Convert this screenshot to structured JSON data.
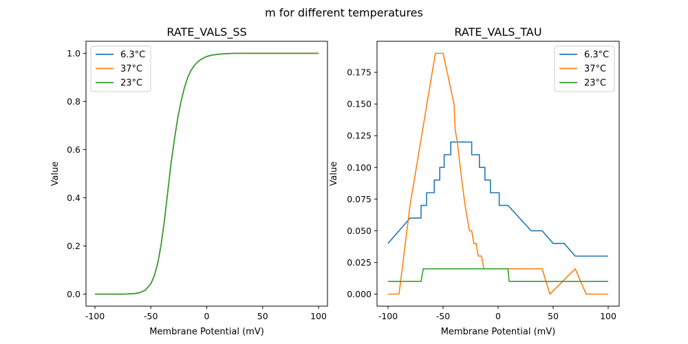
{
  "figure": {
    "suptitle": "m for different temperatures"
  },
  "chart_data": [
    {
      "type": "line",
      "title": "RATE_VALS_SS",
      "xlabel": "Membrane Potential (mV)",
      "ylabel": "Value",
      "xlim": [
        -108,
        108
      ],
      "ylim": [
        -0.05,
        1.05
      ],
      "xticks": [
        "-100",
        "-50",
        "0",
        "50",
        "100"
      ],
      "yticks": [
        "0.0",
        "0.2",
        "0.4",
        "0.6",
        "0.8",
        "1.0"
      ],
      "legend_position": "upper-left",
      "grid": false,
      "x": [
        -100,
        -95,
        -90,
        -85,
        -80,
        -75,
        -70,
        -65,
        -60,
        -55,
        -50,
        -47,
        -44,
        -41,
        -38,
        -35,
        -32,
        -29,
        -26,
        -23,
        -20,
        -17,
        -14,
        -11,
        -8,
        -5,
        -2,
        0,
        5,
        10,
        15,
        20,
        25,
        30,
        40,
        50,
        60,
        70,
        80,
        90,
        100
      ],
      "series": [
        {
          "name": "6.3°C",
          "color": "#1f77b4",
          "values": [
            0.0,
            0.0,
            0.0,
            0.0,
            0.0,
            0.0,
            0.001,
            0.002,
            0.006,
            0.016,
            0.043,
            0.075,
            0.125,
            0.2,
            0.3,
            0.42,
            0.54,
            0.64,
            0.73,
            0.8,
            0.857,
            0.9,
            0.93,
            0.95,
            0.965,
            0.975,
            0.983,
            0.987,
            0.993,
            0.996,
            0.998,
            0.999,
            1.0,
            1.0,
            1.0,
            1.0,
            1.0,
            1.0,
            1.0,
            1.0,
            1.0
          ]
        },
        {
          "name": "37°C",
          "color": "#ff7f0e",
          "values": [
            0.0,
            0.0,
            0.0,
            0.0,
            0.0,
            0.0,
            0.001,
            0.002,
            0.006,
            0.016,
            0.043,
            0.075,
            0.125,
            0.2,
            0.3,
            0.42,
            0.54,
            0.64,
            0.73,
            0.8,
            0.857,
            0.9,
            0.93,
            0.95,
            0.965,
            0.975,
            0.983,
            0.987,
            0.993,
            0.996,
            0.998,
            0.999,
            1.0,
            1.0,
            1.0,
            1.0,
            1.0,
            1.0,
            1.0,
            1.0,
            1.0
          ]
        },
        {
          "name": "23°C",
          "color": "#2ca02c",
          "values": [
            0.0,
            0.0,
            0.0,
            0.0,
            0.0,
            0.0,
            0.001,
            0.002,
            0.006,
            0.016,
            0.043,
            0.075,
            0.125,
            0.2,
            0.3,
            0.42,
            0.54,
            0.64,
            0.73,
            0.8,
            0.857,
            0.9,
            0.93,
            0.95,
            0.965,
            0.975,
            0.983,
            0.987,
            0.993,
            0.996,
            0.998,
            0.999,
            1.0,
            1.0,
            1.0,
            1.0,
            1.0,
            1.0,
            1.0,
            1.0,
            1.0
          ]
        }
      ]
    },
    {
      "type": "line",
      "title": "RATE_VALS_TAU",
      "xlabel": "Membrane Potential (mV)",
      "ylabel": "Value",
      "xlim": [
        -110,
        110
      ],
      "ylim": [
        -0.0095,
        0.1995
      ],
      "xticks": [
        "-100",
        "-50",
        "0",
        "50",
        "100"
      ],
      "yticks": [
        "0.000",
        "0.025",
        "0.050",
        "0.075",
        "0.100",
        "0.125",
        "0.150",
        "0.175"
      ],
      "legend_position": "upper-right",
      "grid": false,
      "series": [
        {
          "name": "6.3°C",
          "color": "#1f77b4",
          "points": [
            [
              -100,
              0.04
            ],
            [
              -80,
              0.06
            ],
            [
              -70,
              0.06
            ],
            [
              -70,
              0.07
            ],
            [
              -65,
              0.07
            ],
            [
              -65,
              0.08
            ],
            [
              -58,
              0.08
            ],
            [
              -58,
              0.09
            ],
            [
              -53,
              0.09
            ],
            [
              -53,
              0.1
            ],
            [
              -49,
              0.1
            ],
            [
              -49,
              0.11
            ],
            [
              -43,
              0.11
            ],
            [
              -43,
              0.12
            ],
            [
              -34,
              0.12
            ],
            [
              -24,
              0.12
            ],
            [
              -24,
              0.11
            ],
            [
              -17,
              0.11
            ],
            [
              -17,
              0.1
            ],
            [
              -12,
              0.1
            ],
            [
              -12,
              0.09
            ],
            [
              -7,
              0.09
            ],
            [
              -7,
              0.08
            ],
            [
              1,
              0.08
            ],
            [
              1,
              0.07
            ],
            [
              9,
              0.07
            ],
            [
              30,
              0.05
            ],
            [
              40,
              0.05
            ],
            [
              50,
              0.04
            ],
            [
              60,
              0.04
            ],
            [
              70,
              0.03
            ],
            [
              100,
              0.03
            ]
          ]
        },
        {
          "name": "37°C",
          "color": "#ff7f0e",
          "points": [
            [
              -100,
              0.0
            ],
            [
              -90,
              0.0
            ],
            [
              -80,
              0.07
            ],
            [
              -57,
              0.19
            ],
            [
              -50,
              0.19
            ],
            [
              -40,
              0.15
            ],
            [
              -39,
              0.13
            ],
            [
              -37,
              0.12
            ],
            [
              -33,
              0.09
            ],
            [
              -30,
              0.07
            ],
            [
              -26,
              0.05
            ],
            [
              -24,
              0.05
            ],
            [
              -22,
              0.04
            ],
            [
              -20,
              0.04
            ],
            [
              -18,
              0.03
            ],
            [
              -15,
              0.03
            ],
            [
              -13,
              0.02
            ],
            [
              40,
              0.02
            ],
            [
              47,
              0.0
            ],
            [
              70,
              0.02
            ],
            [
              80,
              0.0
            ],
            [
              100,
              0.0
            ]
          ]
        },
        {
          "name": "23°C",
          "color": "#2ca02c",
          "points": [
            [
              -100,
              0.01
            ],
            [
              -70,
              0.01
            ],
            [
              -68,
              0.02
            ],
            [
              9,
              0.02
            ],
            [
              10,
              0.01
            ],
            [
              100,
              0.01
            ]
          ]
        }
      ]
    }
  ]
}
